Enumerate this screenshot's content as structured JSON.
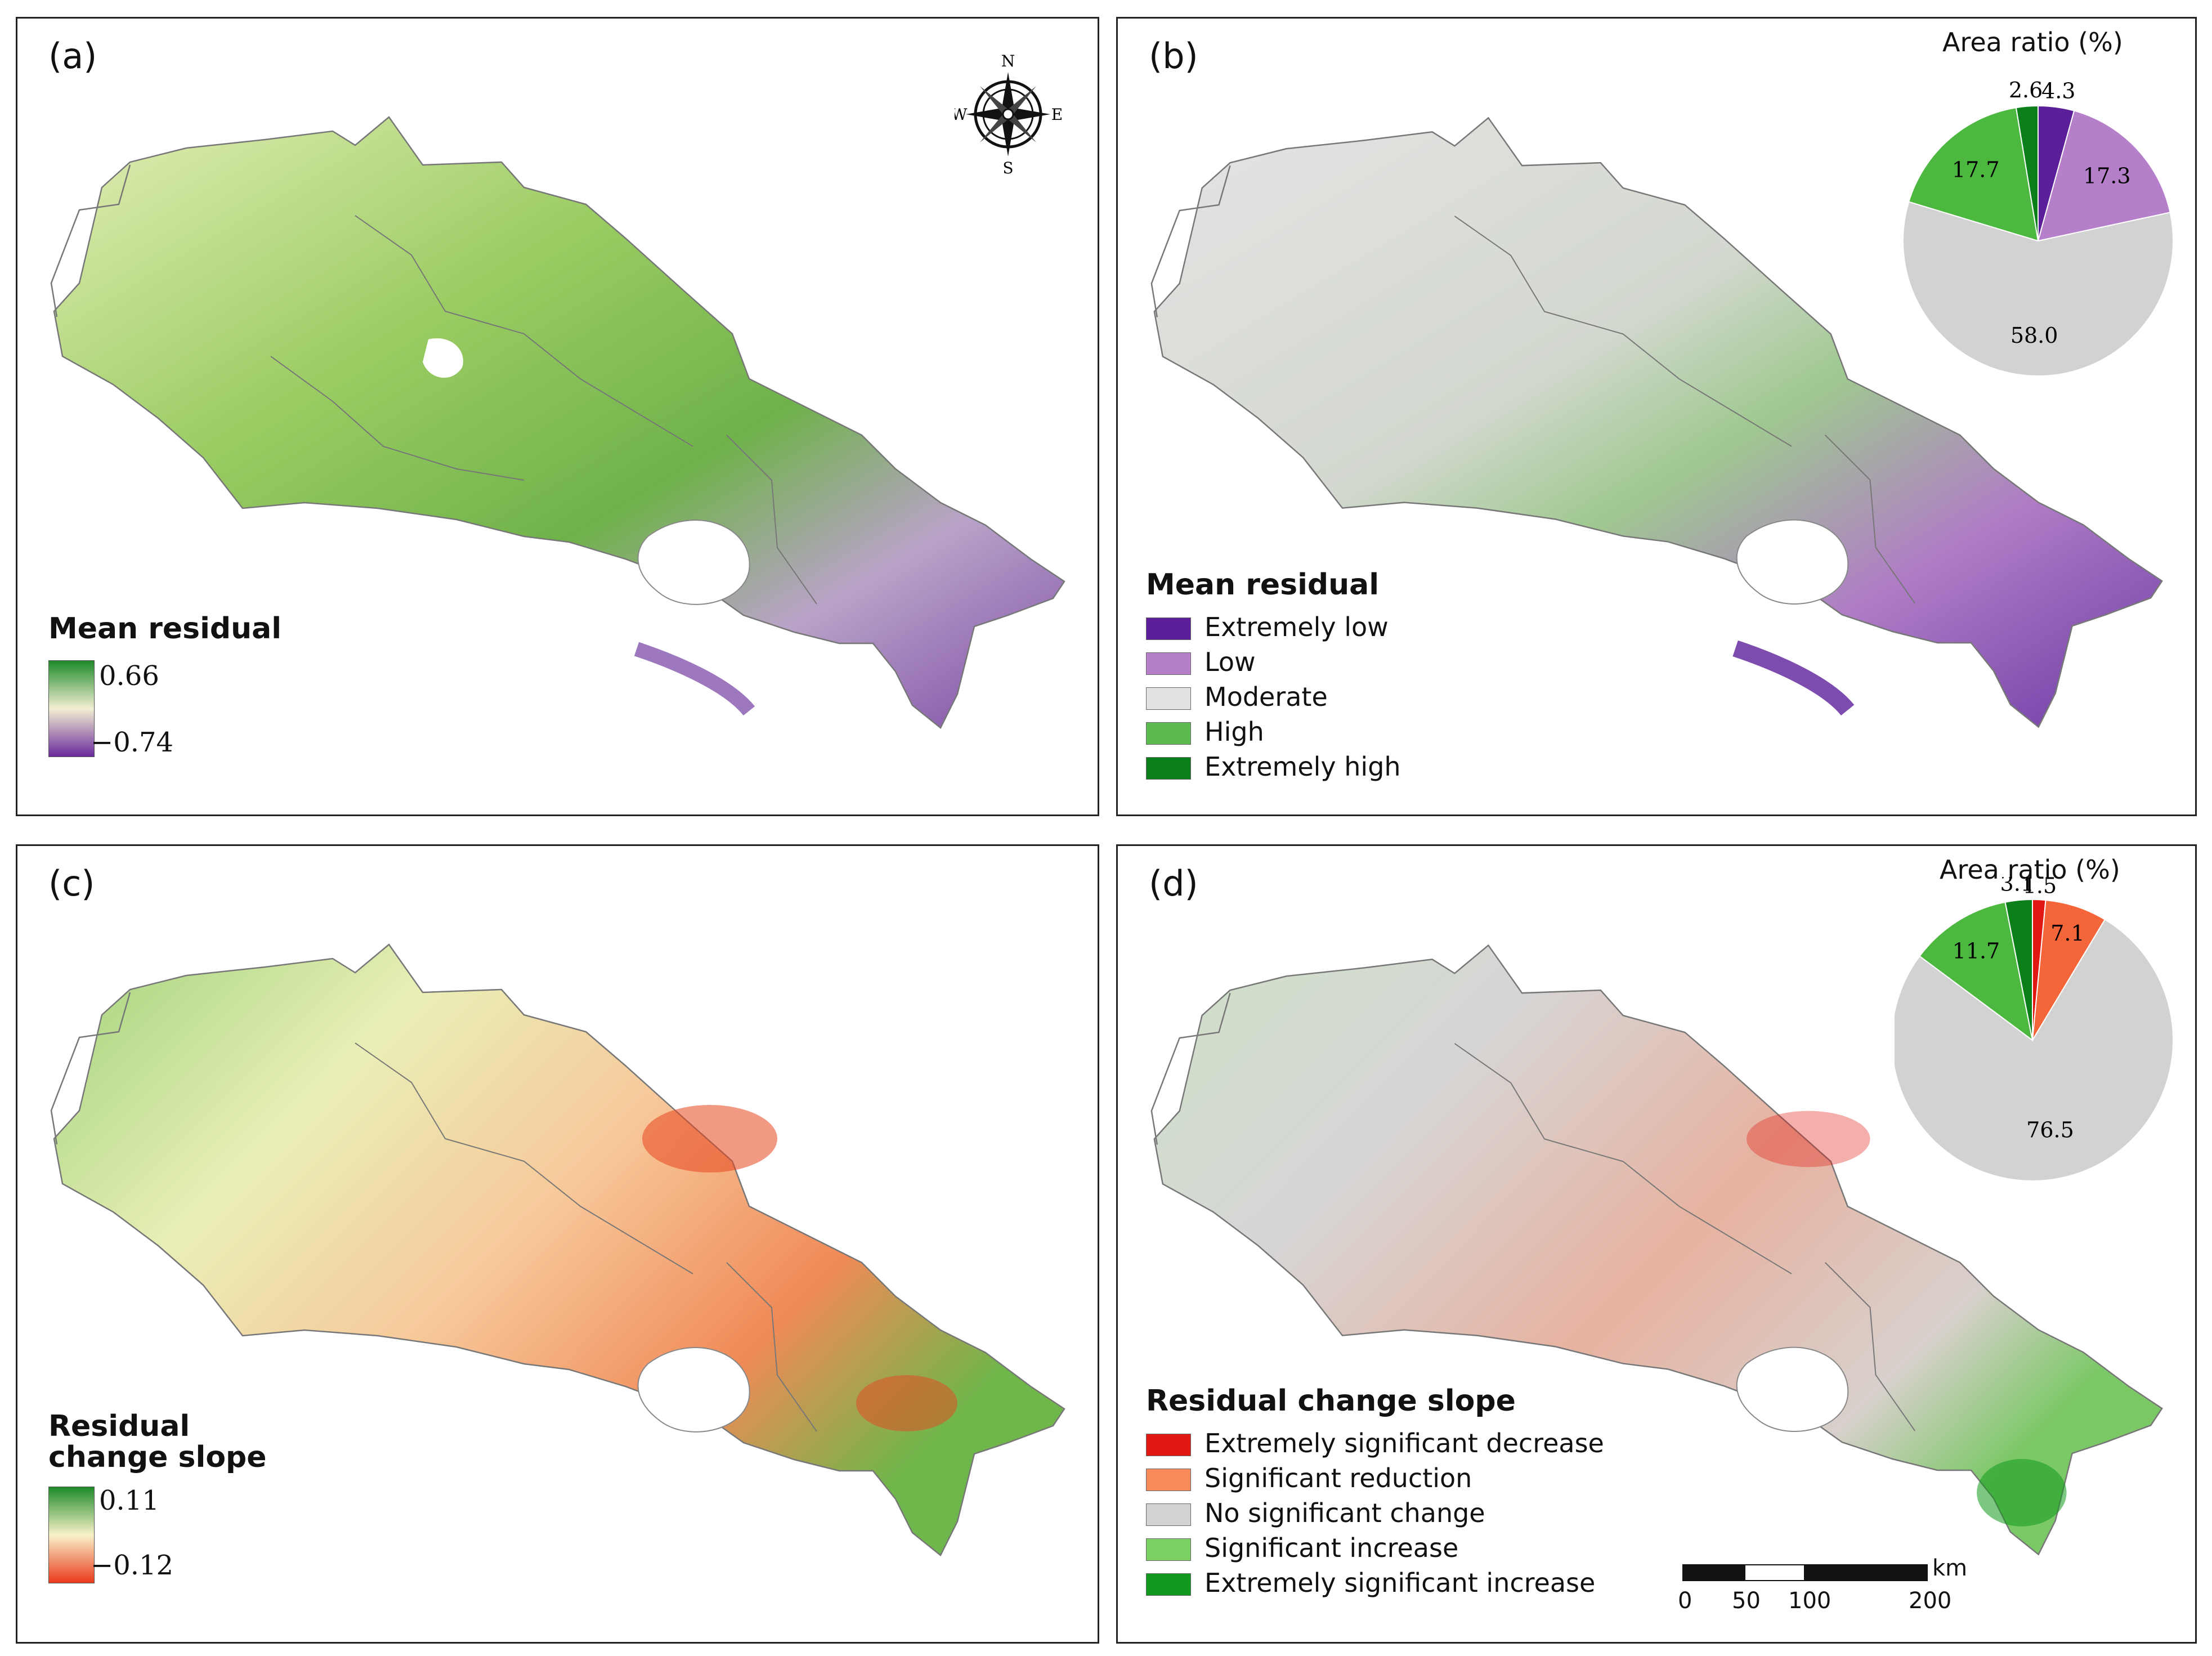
{
  "panels": {
    "a": {
      "label": "(a)",
      "legend_title": "Mean residual",
      "max_label": "0.66",
      "min_label": "−0.74",
      "colors": {
        "top": "#1f8a2a",
        "mid": "#f2efd2",
        "bottom": "#6a2a9c"
      }
    },
    "b": {
      "label": "(b)",
      "legend_title": "Mean residual",
      "categories": [
        {
          "label": "Extremely low",
          "color": "#5b1f9a"
        },
        {
          "label": "Low",
          "color": "#b57fc9"
        },
        {
          "label": "Moderate",
          "color": "#e2e2e2"
        },
        {
          "label": "High",
          "color": "#5cbb4f"
        },
        {
          "label": "Extremely high",
          "color": "#0b7f1a"
        }
      ]
    },
    "c": {
      "label": "(c)",
      "legend_title_line1": "Residual",
      "legend_title_line2": "change slope",
      "max_label": "0.11",
      "min_label": "−0.12",
      "colors": {
        "top": "#1f8a2a",
        "mid": "#f8f2c8",
        "bottom": "#ea3a1c"
      }
    },
    "d": {
      "label": "(d)",
      "legend_title": "Residual change slope",
      "categories": [
        {
          "label": "Extremely significant decrease",
          "color": "#e01a12"
        },
        {
          "label": "Significant reduction",
          "color": "#f98a5a"
        },
        {
          "label": "No significant change",
          "color": "#d2d2d2"
        },
        {
          "label": "Significant increase",
          "color": "#7ccf63"
        },
        {
          "label": "Extremely significant increase",
          "color": "#119a1e"
        }
      ]
    }
  },
  "compass": {
    "n": "N",
    "s": "S",
    "e": "E",
    "w": "W"
  },
  "pies": {
    "b": {
      "title": "Area ratio (%)",
      "slices": [
        {
          "value": 4.3,
          "label": "4.3",
          "color": "#5b1f9a"
        },
        {
          "value": 17.3,
          "label": "17.3",
          "color": "#b57fc9"
        },
        {
          "value": 58.0,
          "label": "58.0",
          "color": "#d2d2d2"
        },
        {
          "value": 17.7,
          "label": "17.7",
          "color": "#4cb83f"
        },
        {
          "value": 2.6,
          "label": "2.6",
          "color": "#0b7f1a"
        }
      ]
    },
    "d": {
      "title": "Area ratio (%)",
      "slices": [
        {
          "value": 1.5,
          "label": "1.5",
          "color": "#e01a12"
        },
        {
          "value": 7.1,
          "label": "7.1",
          "color": "#f4663a"
        },
        {
          "value": 76.5,
          "label": "76.5",
          "color": "#d2d2d2"
        },
        {
          "value": 11.7,
          "label": "11.7",
          "color": "#4cb83f"
        },
        {
          "value": 3.1,
          "label": "3.1",
          "color": "#0b7f1a"
        }
      ]
    }
  },
  "scale_bar": {
    "unit": "km",
    "ticks": [
      "0",
      "50",
      "100",
      "200"
    ]
  }
}
